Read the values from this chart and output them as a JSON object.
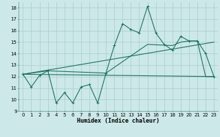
{
  "xlabel": "Humidex (Indice chaleur)",
  "xlim": [
    -0.5,
    23.5
  ],
  "ylim": [
    9,
    18.5
  ],
  "yticks": [
    9,
    10,
    11,
    12,
    13,
    14,
    15,
    16,
    17,
    18
  ],
  "xticks": [
    0,
    1,
    2,
    3,
    4,
    5,
    6,
    7,
    8,
    9,
    10,
    11,
    12,
    13,
    14,
    15,
    16,
    17,
    18,
    19,
    20,
    21,
    22,
    23
  ],
  "bg_color": "#cce8e8",
  "line_color": "#1a6e60",
  "grid_color": "#a8cccc",
  "main_line_x": [
    0,
    1,
    2,
    3,
    4,
    5,
    6,
    7,
    8,
    9,
    10,
    11,
    12,
    13,
    14,
    15,
    16,
    17,
    18,
    19,
    20,
    21,
    22,
    23
  ],
  "main_line_y": [
    12.2,
    11.1,
    12.1,
    12.5,
    9.7,
    10.6,
    9.7,
    11.1,
    11.3,
    9.7,
    12.3,
    14.7,
    16.6,
    16.1,
    15.8,
    18.1,
    15.8,
    14.8,
    14.3,
    15.5,
    15.1,
    15.1,
    14.0,
    12.0
  ],
  "envelope_x": [
    0,
    3,
    10,
    15,
    18,
    19,
    20,
    21,
    22,
    23
  ],
  "envelope_y": [
    12.2,
    12.5,
    12.3,
    14.8,
    14.7,
    15.0,
    15.1,
    15.1,
    12.0,
    12.0
  ],
  "trend1_x": [
    0,
    23
  ],
  "trend1_y": [
    12.2,
    12.0
  ],
  "trend2_x": [
    0,
    23
  ],
  "trend2_y": [
    12.2,
    15.0
  ]
}
